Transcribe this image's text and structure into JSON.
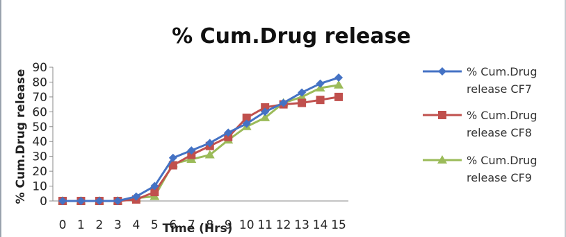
{
  "chart_data": {
    "type": "line",
    "title": "% Cum.Drug release",
    "xlabel": "Time (Hrs)",
    "ylabel": "% Cum.Drug release",
    "x": [
      0,
      1,
      2,
      3,
      4,
      5,
      6,
      7,
      8,
      9,
      10,
      11,
      12,
      13,
      14,
      15
    ],
    "x_tick_labels": [
      "0",
      "1",
      "2",
      "3",
      "4",
      "5",
      "6",
      "7",
      "8",
      "9",
      "10",
      "11",
      "12",
      "13",
      "14",
      "15"
    ],
    "ylim": [
      0,
      90
    ],
    "y_ticks": [
      0,
      10,
      20,
      30,
      40,
      50,
      60,
      70,
      80,
      90
    ],
    "grid": false,
    "legend_position": "right",
    "series": [
      {
        "name_line1": "% Cum.Drug",
        "name_line2": "release CF7",
        "color": "#4472c4",
        "marker": "diamond",
        "values": [
          0,
          0,
          0,
          0,
          3,
          10,
          29,
          34,
          39,
          46,
          52,
          60,
          66,
          73,
          79,
          83
        ]
      },
      {
        "name_line1": "% Cum.Drug",
        "name_line2": "release CF8",
        "color": "#c0504d",
        "marker": "square",
        "values": [
          0,
          0,
          0,
          0,
          1,
          6,
          24,
          31,
          37,
          43,
          56,
          63,
          65,
          66,
          68,
          70
        ]
      },
      {
        "name_line1": "% Cum.Drug",
        "name_line2": "release CF9",
        "color": "#9bbb59",
        "marker": "triangle",
        "values": [
          0,
          0,
          0,
          0,
          2,
          3,
          25,
          28,
          31,
          41,
          50,
          56,
          66,
          70,
          76,
          78
        ]
      }
    ]
  }
}
